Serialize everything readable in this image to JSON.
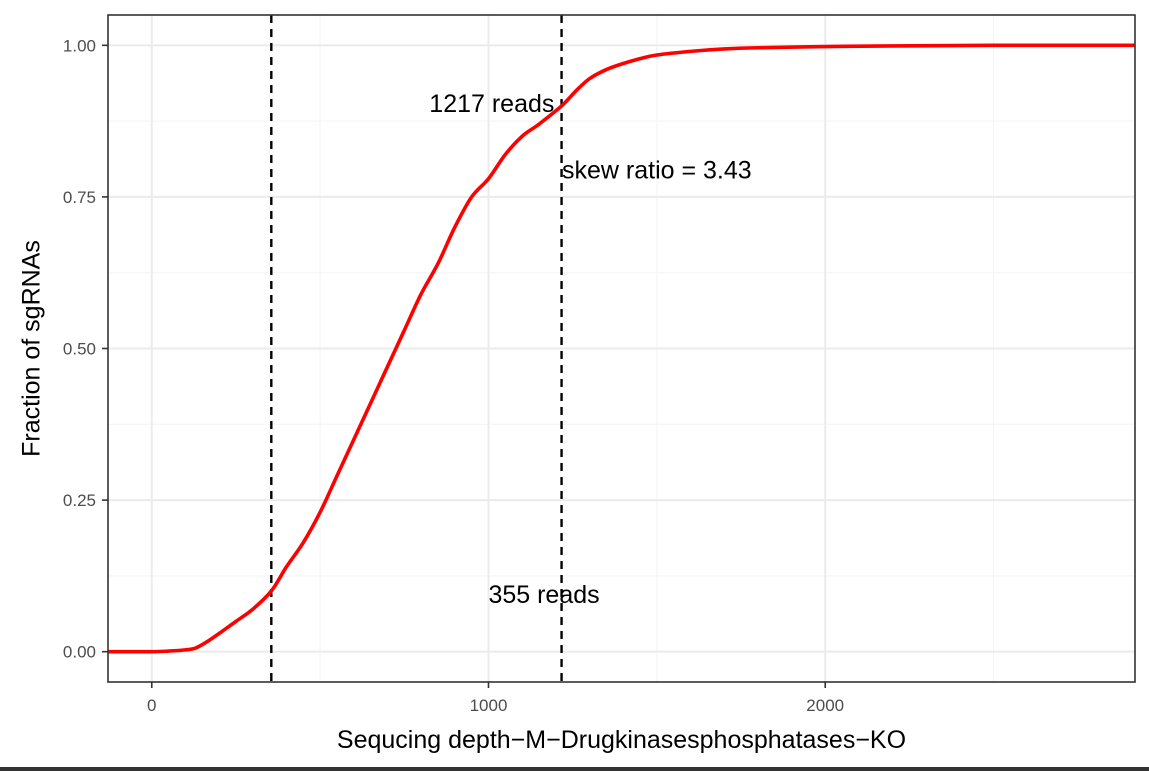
{
  "chart_data": {
    "type": "line",
    "title": "",
    "xlabel": "Sequcing depth−M−Drugkinasesphosphatases−KO",
    "ylabel": "Fraction of sgRNAs",
    "xlim": [
      -130,
      2920
    ],
    "ylim": [
      -0.05,
      1.05
    ],
    "x_ticks": [
      0,
      1000,
      2000
    ],
    "x_tick_labels": [
      "0",
      "1000",
      "2000"
    ],
    "y_ticks": [
      0,
      0.25,
      0.5,
      0.75,
      1.0
    ],
    "y_tick_labels": [
      "0.00",
      "0.25",
      "0.50",
      "0.75",
      "1.00"
    ],
    "grid": true,
    "series": [
      {
        "color": "#ff0000",
        "x": [
          -130,
          0,
          50,
          100,
          130,
          160,
          200,
          250,
          300,
          355,
          400,
          450,
          500,
          550,
          600,
          650,
          700,
          750,
          800,
          850,
          900,
          950,
          1000,
          1050,
          1100,
          1150,
          1217,
          1260,
          1300,
          1350,
          1400,
          1450,
          1500,
          1600,
          1700,
          1800,
          2000,
          2200,
          2500,
          2920
        ],
        "y": [
          0.0,
          0.0,
          0.001,
          0.003,
          0.006,
          0.015,
          0.03,
          0.05,
          0.07,
          0.1,
          0.14,
          0.18,
          0.23,
          0.29,
          0.35,
          0.41,
          0.47,
          0.53,
          0.59,
          0.64,
          0.7,
          0.75,
          0.78,
          0.82,
          0.85,
          0.87,
          0.9,
          0.925,
          0.945,
          0.96,
          0.97,
          0.978,
          0.984,
          0.99,
          0.994,
          0.996,
          0.998,
          0.999,
          1.0,
          1.0
        ]
      }
    ],
    "reference_lines": [
      {
        "orientation": "vertical",
        "x": 355,
        "style": "dashed",
        "color": "#000000"
      },
      {
        "orientation": "vertical",
        "x": 1217,
        "style": "dashed",
        "color": "#000000"
      }
    ],
    "annotations": [
      {
        "text": "1217 reads",
        "x": 1010,
        "y": 0.905
      },
      {
        "text": "355 reads",
        "x": 1165,
        "y": 0.095
      },
      {
        "text": "skew ratio = 3.43",
        "x": 1500,
        "y": 0.795
      }
    ],
    "colors": {
      "panel_border": "#333333",
      "grid_major": "#ebebeb",
      "grid_minor": "#f5f5f5"
    }
  }
}
